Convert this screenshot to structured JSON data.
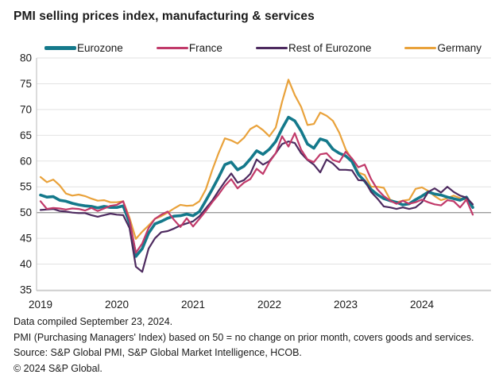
{
  "title": "PMI selling prices index, manufacturing & services",
  "legend": [
    {
      "label": "Eurozone",
      "color": "#14798B"
    },
    {
      "label": "France",
      "color": "#C13A6A"
    },
    {
      "label": "Rest of Eurozone",
      "color": "#4D2A5F"
    },
    {
      "label": "Germany",
      "color": "#E9A23B"
    }
  ],
  "footnotes": [
    "Data compiled September 23, 2024.",
    "PMI (Purchasing Managers' Index) based on 50 = no change on prior month, covers goods and services.",
    "Source: S&P Global PMI, S&P Global Market Intelligence, HCOB.",
    "© 2024 S&P Global."
  ],
  "chart_data": {
    "type": "line",
    "title": "PMI selling prices index, manufacturing & services",
    "x_unit": "month",
    "x_start": "2019-01",
    "x_end": "2024-09",
    "x_tick_labels": [
      "2019",
      "2020",
      "2021",
      "2022",
      "2023",
      "2024"
    ],
    "y_ticks": [
      35,
      40,
      45,
      50,
      55,
      60,
      65,
      70,
      75,
      80
    ],
    "ylim": [
      35,
      80
    ],
    "baseline": 50,
    "grid": true,
    "legend_position": "top",
    "colors": {
      "grid": "#e2e2e2",
      "baseline": "#9c9c9c",
      "axis": "#c4c4c4",
      "tick_text": "#1a1a1a"
    },
    "series": [
      {
        "name": "Eurozone",
        "color": "#14798B",
        "stroke_width": 3.6,
        "draw_order": 1,
        "values": [
          53.4,
          53.0,
          53.1,
          52.4,
          52.2,
          51.8,
          51.5,
          51.3,
          51.2,
          50.9,
          51.2,
          51.0,
          51.0,
          51.3,
          48.0,
          41.5,
          43.0,
          46.0,
          47.8,
          48.3,
          48.9,
          49.3,
          49.4,
          49.7,
          49.4,
          50.2,
          52.3,
          54.5,
          56.8,
          59.3,
          59.8,
          58.3,
          59.0,
          60.4,
          62.0,
          61.3,
          62.3,
          63.8,
          66.3,
          68.5,
          67.8,
          65.8,
          63.3,
          62.5,
          64.3,
          63.9,
          62.3,
          61.5,
          61.0,
          59.9,
          57.4,
          56.1,
          54.5,
          53.5,
          52.7,
          52.3,
          52.0,
          51.5,
          51.7,
          52.5,
          53.2,
          54.0,
          53.6,
          53.4,
          53.0,
          52.7,
          52.4,
          53.0,
          51.0
        ]
      },
      {
        "name": "France",
        "color": "#C13A6A",
        "stroke_width": 2.2,
        "draw_order": 3,
        "values": [
          52.2,
          50.7,
          50.9,
          50.8,
          50.6,
          50.8,
          50.7,
          50.4,
          50.9,
          50.3,
          50.8,
          51.3,
          51.5,
          52.2,
          48.5,
          42.2,
          44.0,
          47.0,
          48.8,
          49.6,
          50.2,
          48.6,
          47.2,
          48.9,
          47.3,
          48.8,
          50.3,
          52.0,
          53.5,
          55.2,
          56.5,
          54.7,
          55.8,
          56.5,
          58.5,
          57.5,
          59.8,
          61.5,
          64.8,
          62.8,
          65.4,
          62.2,
          60.3,
          59.8,
          61.3,
          61.5,
          60.2,
          59.8,
          61.8,
          60.5,
          58.8,
          59.3,
          56.5,
          54.5,
          53.2,
          52.3,
          51.7,
          52.3,
          51.7,
          52.0,
          52.5,
          52.0,
          51.6,
          51.4,
          52.4,
          52.2,
          51.0,
          52.5,
          49.6
        ]
      },
      {
        "name": "Rest of Eurozone",
        "color": "#4D2A5F",
        "stroke_width": 2.2,
        "draw_order": 2,
        "values": [
          50.5,
          50.6,
          50.7,
          50.3,
          50.2,
          50.0,
          49.9,
          49.9,
          49.5,
          49.2,
          49.5,
          49.8,
          49.6,
          49.5,
          47.0,
          39.5,
          38.5,
          43.0,
          45.0,
          46.2,
          46.4,
          46.9,
          47.5,
          47.9,
          48.3,
          49.3,
          50.8,
          52.3,
          54.2,
          56.0,
          57.6,
          55.8,
          56.3,
          57.5,
          60.3,
          59.3,
          60.0,
          61.5,
          63.3,
          63.8,
          63.5,
          61.5,
          60.2,
          59.3,
          57.8,
          60.3,
          59.5,
          58.3,
          58.3,
          58.2,
          56.3,
          56.2,
          54.0,
          52.7,
          51.2,
          51.0,
          50.7,
          51.0,
          50.7,
          51.0,
          52.0,
          54.0,
          54.7,
          53.9,
          55.0,
          54.0,
          53.3,
          52.9,
          51.6
        ]
      },
      {
        "name": "Germany",
        "color": "#E9A23B",
        "stroke_width": 2.2,
        "draw_order": 0,
        "values": [
          56.9,
          55.9,
          56.4,
          55.3,
          53.7,
          53.3,
          53.5,
          53.2,
          52.7,
          52.3,
          52.4,
          52.0,
          52.0,
          52.2,
          49.0,
          44.9,
          46.3,
          47.5,
          48.8,
          49.3,
          50.0,
          50.8,
          51.5,
          51.3,
          51.4,
          52.2,
          54.5,
          58.2,
          61.5,
          64.4,
          64.0,
          63.4,
          64.5,
          66.2,
          66.9,
          66.0,
          64.8,
          66.5,
          71.5,
          75.8,
          72.8,
          70.5,
          67.0,
          67.2,
          69.4,
          68.8,
          67.8,
          65.5,
          62.3,
          60.3,
          57.8,
          57.3,
          55.0,
          55.0,
          54.8,
          52.5,
          52.0,
          52.3,
          52.5,
          54.6,
          54.9,
          54.2,
          53.2,
          52.4,
          52.8,
          53.3,
          52.8,
          52.4,
          51.2
        ]
      }
    ]
  }
}
